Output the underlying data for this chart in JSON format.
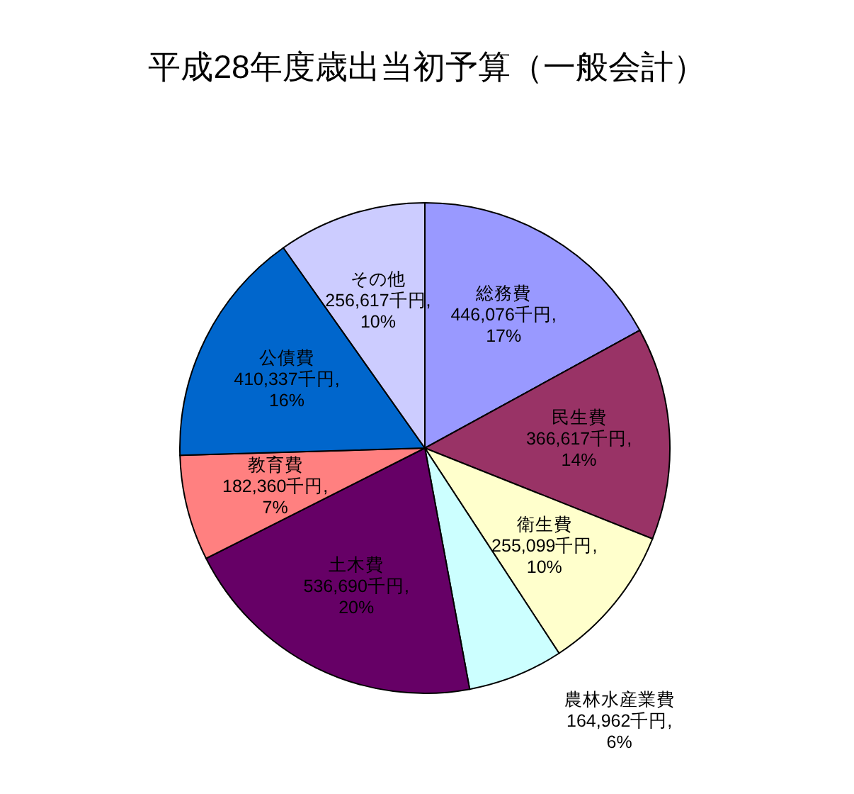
{
  "chart_data": {
    "type": "pie",
    "title": "平成28年度歳出当初予算（一般会計）",
    "categories": [
      "総務費",
      "民生費",
      "衛生費",
      "農林水産業費",
      "土木費",
      "教育費",
      "公債費",
      "その他"
    ],
    "values": [
      446076,
      366617,
      255099,
      164962,
      536690,
      182360,
      410337,
      256617
    ],
    "colors": [
      "#9999ff",
      "#993366",
      "#ffffcc",
      "#ccffff",
      "#660066",
      "#ff8080",
      "#0066cc",
      "#ccccff"
    ],
    "value_labels": [
      "446,076千円, 17%",
      "366,617千円, 14%",
      "255,099千円, 10%",
      "164,962千円, 6%",
      "536,690千円, 20%",
      "182,360千円, 7%",
      "410,337千円, 16%",
      "256,617千円, 10%"
    ]
  }
}
